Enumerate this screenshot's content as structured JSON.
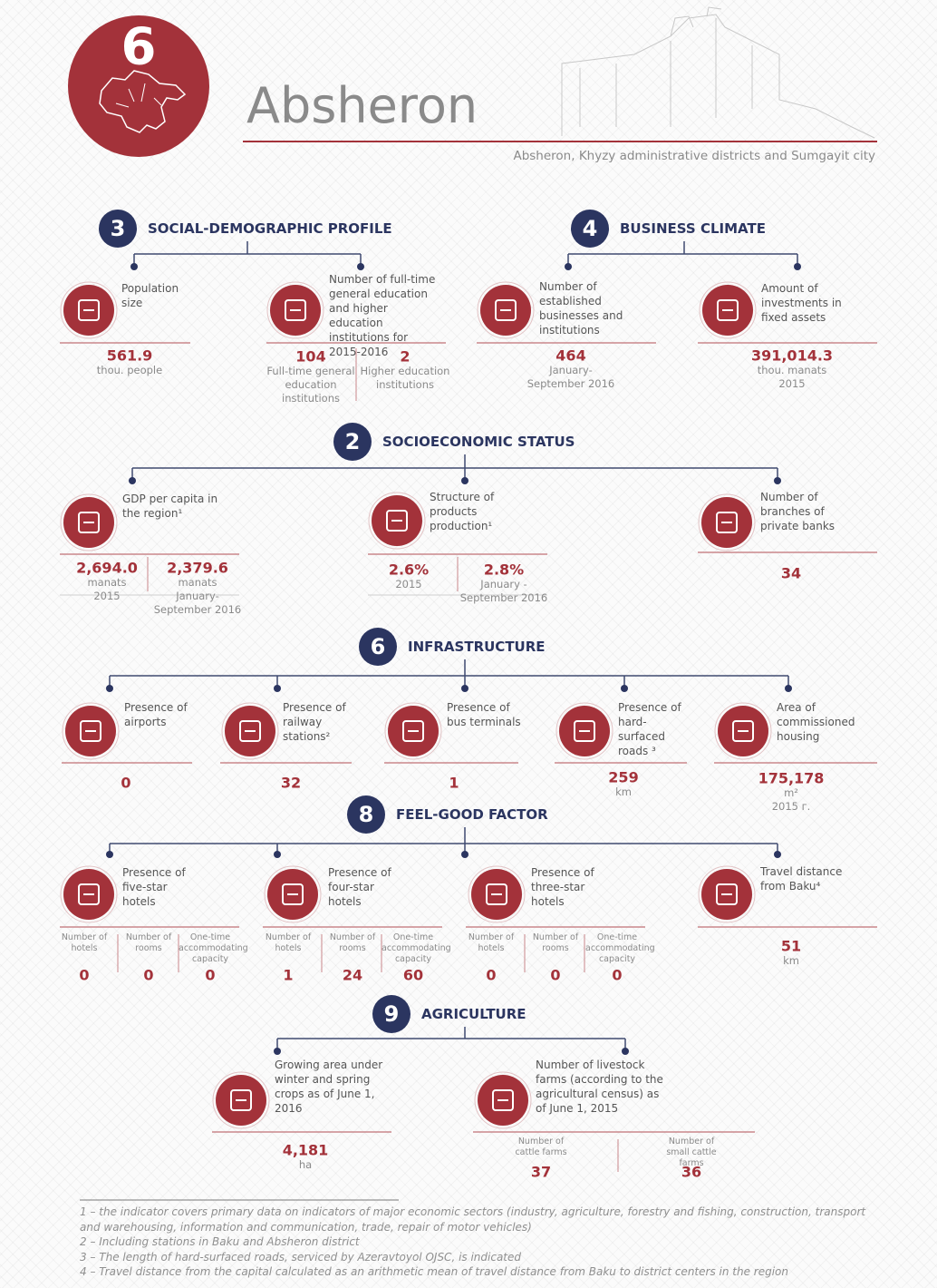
{
  "header": {
    "badge": "6",
    "title": "Absheron",
    "subtitle": "Absheron, Khyzy administrative districts and Sumgayit city"
  },
  "sections": [
    {
      "number": "3",
      "title": "SOCIAL-DEMOGRAPHIC PROFILE",
      "items": [
        {
          "label": "Population size",
          "values": [
            {
              "value": "561.9",
              "notes": [
                "thou. people"
              ]
            }
          ]
        },
        {
          "label": "Number of full-time general education and higher education institutions for 2015-2016",
          "values": [
            {
              "value": "104",
              "notes": [
                "Full-time general education institutions"
              ]
            },
            {
              "value": "2",
              "notes": [
                "Higher education institutions"
              ]
            }
          ]
        }
      ]
    },
    {
      "number": "4",
      "title": "BUSINESS CLIMATE",
      "items": [
        {
          "label": "Number of established businesses and institutions",
          "values": [
            {
              "value": "464",
              "notes": [
                "January-September 2016"
              ]
            }
          ]
        },
        {
          "label": "Amount of investments in fixed assets",
          "values": [
            {
              "value": "391,014.3",
              "notes": [
                "thou. manats",
                "2015"
              ]
            }
          ]
        }
      ]
    },
    {
      "number": "2",
      "title": "SOCIOECONOMIC STATUS",
      "items": [
        {
          "label": "GDP per capita in the region¹",
          "values": [
            {
              "value": "2,694.0",
              "notes": [
                "manats",
                "2015"
              ]
            },
            {
              "value": "2,379.6",
              "notes": [
                "manats",
                "January-September 2016"
              ]
            }
          ]
        },
        {
          "label": "Structure of products production¹",
          "values": [
            {
              "value": "2.6%",
              "notes": [
                "2015"
              ]
            },
            {
              "value": "2.8%",
              "notes": [
                "January - September 2016"
              ]
            }
          ]
        },
        {
          "label": "Number of branches of private banks",
          "values": [
            {
              "value": "34"
            }
          ]
        }
      ]
    },
    {
      "number": "6",
      "title": "INFRASTRUCTURE",
      "items": [
        {
          "label": "Presence of airports",
          "values": [
            {
              "value": "0"
            }
          ]
        },
        {
          "label": "Presence of railway stations²",
          "values": [
            {
              "value": "32"
            }
          ]
        },
        {
          "label": "Presence of bus terminals",
          "values": [
            {
              "value": "1"
            }
          ]
        },
        {
          "label": "Presence of hard-surfaced roads ³",
          "values": [
            {
              "value": "259",
              "notes": [
                "km"
              ]
            }
          ]
        },
        {
          "label": "Area of commissioned housing",
          "values": [
            {
              "value": "175,178",
              "notes": [
                "m²",
                "2015 г."
              ]
            }
          ]
        }
      ]
    },
    {
      "number": "8",
      "title": "FEEL-GOOD FACTOR",
      "items": [
        {
          "label": "Presence of five-star hotels",
          "values": [
            {
              "caption": "Number of hotels",
              "value": "0"
            },
            {
              "caption": "Number of rooms",
              "value": "0"
            },
            {
              "caption": "One-time accommodating capacity",
              "value": "0"
            }
          ]
        },
        {
          "label": "Presence of four-star hotels",
          "values": [
            {
              "caption": "Number of hotels",
              "value": "1"
            },
            {
              "caption": "Number of rooms",
              "value": "24"
            },
            {
              "caption": "One-time accommodating capacity",
              "value": "60"
            }
          ]
        },
        {
          "label": "Presence of three-star hotels",
          "values": [
            {
              "caption": "Number of hotels",
              "value": "0"
            },
            {
              "caption": "Number of rooms",
              "value": "0"
            },
            {
              "caption": "One-time accommodating capacity",
              "value": "0"
            }
          ]
        },
        {
          "label": "Travel distance from Baku⁴",
          "values": [
            {
              "value": "51",
              "notes": [
                "km"
              ]
            }
          ]
        }
      ]
    },
    {
      "number": "9",
      "title": "AGRICULTURE",
      "items": [
        {
          "label": "Growing area under winter and spring crops as of June 1, 2016",
          "values": [
            {
              "value": "4,181",
              "notes": [
                "ha"
              ]
            }
          ]
        },
        {
          "label": "Number of livestock farms (according to the agricultural census) as of June 1, 2015",
          "values": [
            {
              "caption": "Number of cattle farms",
              "value": "37"
            },
            {
              "caption": "Number of small cattle farms",
              "value": "36"
            }
          ]
        }
      ]
    }
  ],
  "footnotes": [
    "1 – the indicator covers primary data on indicators of major economic sectors (industry, agriculture, forestry and fishing, construction, transport and warehousing, information and communication, trade, repair of  motor vehicles)",
    "2 – Including stations in Baku and Absheron district",
    "3 – The length of hard-surfaced roads, serviced by Azeravtoyol OJSC, is indicated",
    "4 – Travel distance from the capital calculated as an arithmetic mean of travel distance from Baku to district centers in the region"
  ]
}
